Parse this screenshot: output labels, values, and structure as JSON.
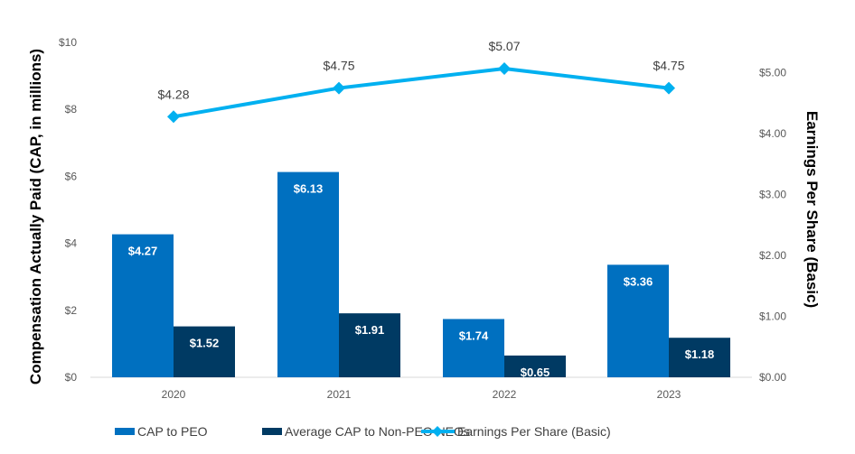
{
  "chart_data": {
    "type": "bar",
    "categories": [
      "2020",
      "2021",
      "2022",
      "2023"
    ],
    "series": [
      {
        "name": "CAP to PEO",
        "type": "bar",
        "axis": "left",
        "values": [
          4.27,
          6.13,
          1.74,
          3.36
        ],
        "labels": [
          "$4.27",
          "$6.13",
          "$1.74",
          "$3.36"
        ],
        "color": "#0070C0"
      },
      {
        "name": "Average CAP to Non-PEO NEOs",
        "type": "bar",
        "axis": "left",
        "values": [
          1.52,
          1.91,
          0.65,
          1.18
        ],
        "labels": [
          "$1.52",
          "$1.91",
          "$0.65",
          "$1.18"
        ],
        "color": "#003A63"
      },
      {
        "name": "Earnings Per Share (Basic)",
        "type": "line",
        "marker": "diamond",
        "axis": "right",
        "values": [
          4.28,
          4.75,
          5.07,
          4.75
        ],
        "labels": [
          "$4.28",
          "$4.75",
          "$5.07",
          "$4.75"
        ],
        "color": "#00B0F0"
      }
    ],
    "ylabel": "Compensation Actually Paid (CAP, in millions)",
    "y2label": "Earnings Per Share (Basic)",
    "ylim": [
      0,
      10
    ],
    "y2lim": [
      0,
      5.5
    ],
    "yticks": [
      "$0",
      "$2",
      "$4",
      "$6",
      "$8",
      "$10"
    ],
    "y2ticks": [
      "$0.00",
      "$1.00",
      "$2.00",
      "$3.00",
      "$4.00",
      "$5.00"
    ],
    "grid": false,
    "legend": "bottom"
  }
}
